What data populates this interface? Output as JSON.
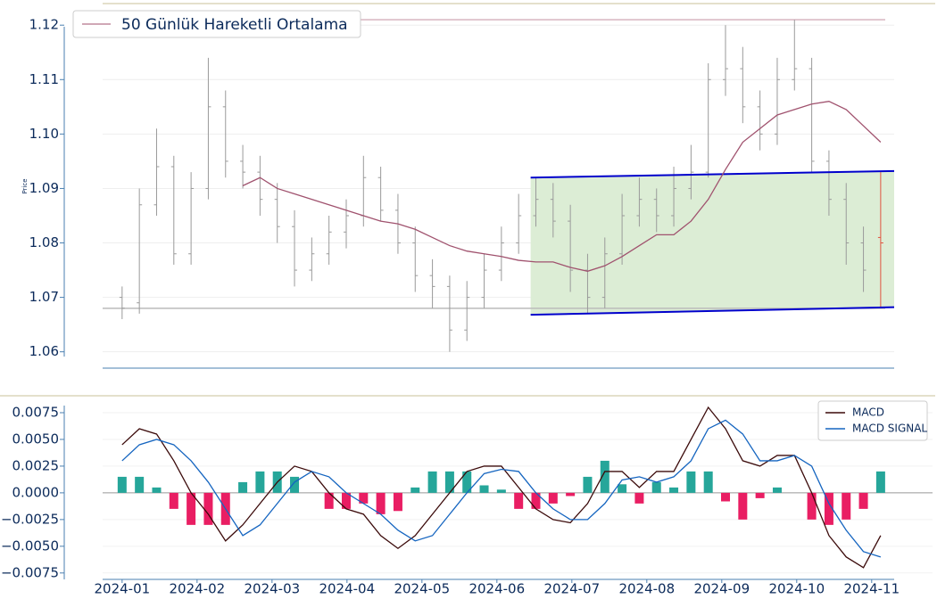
{
  "chart_data": [
    {
      "type": "candlestick",
      "y_label": "Price",
      "x": [
        0,
        0.23,
        0.46,
        0.69,
        0.92,
        1.15,
        1.38,
        1.61,
        1.84,
        2.07,
        2.3,
        2.53,
        2.76,
        2.99,
        3.22,
        3.45,
        3.68,
        3.91,
        4.14,
        4.37,
        4.6,
        4.83,
        5.06,
        5.29,
        5.52,
        5.75,
        5.98,
        6.21,
        6.44,
        6.67,
        6.9,
        7.13,
        7.36,
        7.59,
        7.82,
        8.05,
        8.28,
        8.51,
        8.74,
        8.97,
        9.2,
        9.43,
        9.66,
        9.89,
        10.12
      ],
      "open": [
        1.07,
        1.069,
        1.087,
        1.094,
        1.078,
        1.09,
        1.105,
        1.095,
        1.093,
        1.088,
        1.083,
        1.075,
        1.078,
        1.082,
        1.085,
        1.092,
        1.086,
        1.08,
        1.074,
        1.072,
        1.064,
        1.07,
        1.075,
        1.08,
        1.085,
        1.088,
        1.084,
        1.075,
        1.07,
        1.078,
        1.085,
        1.088,
        1.085,
        1.09,
        1.093,
        1.11,
        1.112,
        1.105,
        1.1,
        1.11,
        1.112,
        1.095,
        1.088,
        1.08,
        1.081
      ],
      "high": [
        1.072,
        1.09,
        1.101,
        1.096,
        1.093,
        1.114,
        1.108,
        1.098,
        1.096,
        1.091,
        1.086,
        1.081,
        1.085,
        1.088,
        1.096,
        1.094,
        1.089,
        1.083,
        1.077,
        1.074,
        1.073,
        1.078,
        1.083,
        1.089,
        1.092,
        1.091,
        1.087,
        1.078,
        1.081,
        1.089,
        1.092,
        1.09,
        1.094,
        1.098,
        1.113,
        1.12,
        1.116,
        1.108,
        1.114,
        1.121,
        1.114,
        1.097,
        1.091,
        1.083,
        1.093
      ],
      "low": [
        1.066,
        1.067,
        1.085,
        1.076,
        1.076,
        1.088,
        1.092,
        1.09,
        1.085,
        1.08,
        1.072,
        1.073,
        1.076,
        1.079,
        1.083,
        1.084,
        1.078,
        1.071,
        1.068,
        1.06,
        1.062,
        1.068,
        1.073,
        1.078,
        1.083,
        1.081,
        1.071,
        1.067,
        1.068,
        1.076,
        1.083,
        1.082,
        1.083,
        1.088,
        1.092,
        1.107,
        1.102,
        1.097,
        1.098,
        1.108,
        1.093,
        1.085,
        1.076,
        1.071,
        1.068
      ],
      "close": [
        1.068,
        1.087,
        1.094,
        1.078,
        1.09,
        1.105,
        1.095,
        1.093,
        1.088,
        1.083,
        1.075,
        1.078,
        1.082,
        1.085,
        1.092,
        1.086,
        1.08,
        1.074,
        1.072,
        1.064,
        1.07,
        1.075,
        1.08,
        1.085,
        1.088,
        1.084,
        1.075,
        1.07,
        1.078,
        1.085,
        1.088,
        1.085,
        1.09,
        1.093,
        1.11,
        1.112,
        1.105,
        1.1,
        1.11,
        1.112,
        1.095,
        1.088,
        1.08,
        1.075,
        1.08
      ],
      "color": "#9a9a9a",
      "series": [
        {
          "name": "50 Günlük Hareketli Ortalama",
          "color": "#a0526e",
          "values": [
            null,
            null,
            null,
            null,
            null,
            null,
            null,
            1.0905,
            1.092,
            1.09,
            1.089,
            1.088,
            1.087,
            1.086,
            1.085,
            1.084,
            1.0835,
            1.0825,
            1.081,
            1.0795,
            1.0785,
            1.078,
            1.0775,
            1.0768,
            1.0765,
            1.0765,
            1.0755,
            1.0748,
            1.0758,
            1.0775,
            1.0795,
            1.0815,
            1.0815,
            1.084,
            1.088,
            1.0935,
            1.0985,
            1.101,
            1.1035,
            1.1045,
            1.1055,
            1.106,
            1.1045,
            1.1015,
            1.0985
          ]
        }
      ],
      "horizontal_lines": [
        1.121,
        1.068
      ],
      "channel": {
        "x": [
          5.45,
          10.3
        ],
        "upper": [
          1.092,
          1.0932
        ],
        "lower": [
          1.0668,
          1.0682
        ],
        "color": "#0000cc",
        "fill": "#dcedd5"
      },
      "xlim": [
        -0.26,
        10.3
      ],
      "ylim": [
        1.057,
        1.1238
      ],
      "yticks": [
        1.06,
        1.07,
        1.08,
        1.09,
        {
          "value": 1.1,
          "label": "1.10"
        },
        1.11,
        1.12
      ],
      "legend": "upper left"
    },
    {
      "type": "macd",
      "x": [
        0,
        0.23,
        0.46,
        0.69,
        0.92,
        1.15,
        1.38,
        1.61,
        1.84,
        2.07,
        2.3,
        2.53,
        2.76,
        2.99,
        3.22,
        3.45,
        3.68,
        3.91,
        4.14,
        4.37,
        4.6,
        4.83,
        5.06,
        5.29,
        5.52,
        5.75,
        5.98,
        6.21,
        6.44,
        6.67,
        6.9,
        7.13,
        7.36,
        7.59,
        7.82,
        8.05,
        8.28,
        8.51,
        8.74,
        8.97,
        9.2,
        9.43,
        9.66,
        9.89,
        10.12
      ],
      "series": [
        {
          "name": "MACD",
          "color": "#3b0a0a",
          "values": [
            0.0045,
            0.006,
            0.0055,
            0.003,
            0.0,
            -0.002,
            -0.0045,
            -0.003,
            -0.001,
            0.001,
            0.0025,
            0.002,
            0.0,
            -0.0015,
            -0.002,
            -0.004,
            -0.0052,
            -0.004,
            -0.002,
            0.0,
            0.002,
            0.0025,
            0.0025,
            0.0005,
            -0.0015,
            -0.0025,
            -0.0028,
            -0.001,
            0.002,
            0.002,
            0.0005,
            0.002,
            0.002,
            0.005,
            0.008,
            0.006,
            0.003,
            0.0025,
            0.0035,
            0.0035,
            0.0,
            -0.004,
            -0.006,
            -0.007,
            -0.004
          ]
        },
        {
          "name": "MACD SIGNAL",
          "color": "#1565c0",
          "values": [
            0.003,
            0.0045,
            0.005,
            0.0045,
            0.003,
            0.001,
            -0.0015,
            -0.004,
            -0.003,
            -0.001,
            0.001,
            0.002,
            0.0015,
            0.0,
            -0.001,
            -0.002,
            -0.0035,
            -0.0045,
            -0.004,
            -0.002,
            0.0,
            0.0018,
            0.0022,
            0.002,
            0.0,
            -0.0015,
            -0.0025,
            -0.0025,
            -0.001,
            0.0012,
            0.0015,
            0.001,
            0.0015,
            0.003,
            0.006,
            0.0068,
            0.0055,
            0.003,
            0.003,
            0.0035,
            0.0025,
            -0.001,
            -0.0035,
            -0.0055,
            -0.006
          ]
        }
      ],
      "histogram": {
        "colors": [
          "#26a69a",
          "#e91e63"
        ],
        "values": [
          0.0015,
          0.0015,
          0.0005,
          -0.0015,
          -0.003,
          -0.003,
          -0.003,
          0.001,
          0.002,
          0.002,
          0.0015,
          0,
          -0.0015,
          -0.0015,
          -0.001,
          -0.002,
          -0.0017,
          0.0005,
          0.002,
          0.002,
          0.002,
          0.0007,
          0.0003,
          -0.0015,
          -0.0015,
          -0.001,
          -0.0003,
          0.0015,
          0.003,
          0.0008,
          -0.001,
          0.001,
          0.0005,
          0.002,
          0.002,
          -0.0008,
          -0.0025,
          -0.0005,
          0.0005,
          0,
          -0.0025,
          -0.003,
          -0.0025,
          -0.0015,
          0.002
        ]
      },
      "xlim": [
        -0.26,
        10.3
      ],
      "ylim": [
        -0.0081,
        0.009
      ],
      "yticks": [
        {
          "value": 0.0075,
          "label": "0.0075"
        },
        {
          "value": 0.005,
          "label": "0.0050"
        },
        {
          "value": 0.0025,
          "label": "0.0025"
        },
        {
          "value": 0,
          "label": "0.0000"
        },
        {
          "value": -0.0025,
          "label": "−0.0025"
        },
        {
          "value": -0.005,
          "label": "−0.0050"
        },
        {
          "value": -0.0075,
          "label": "−0.0075"
        }
      ],
      "xticks": [
        {
          "value": 0,
          "label": "2024-01"
        },
        {
          "value": 1,
          "label": "2024-02"
        },
        {
          "value": 2,
          "label": "2024-03"
        },
        {
          "value": 3,
          "label": "2024-04"
        },
        {
          "value": 4,
          "label": "2024-05"
        },
        {
          "value": 5,
          "label": "2024-06"
        },
        {
          "value": 6,
          "label": "2024-07"
        },
        {
          "value": 7,
          "label": "2024-08"
        },
        {
          "value": 8,
          "label": "2024-09"
        },
        {
          "value": 9,
          "label": "2024-10"
        },
        {
          "value": 10,
          "label": "2024-11"
        }
      ],
      "legend": "upper right"
    }
  ]
}
